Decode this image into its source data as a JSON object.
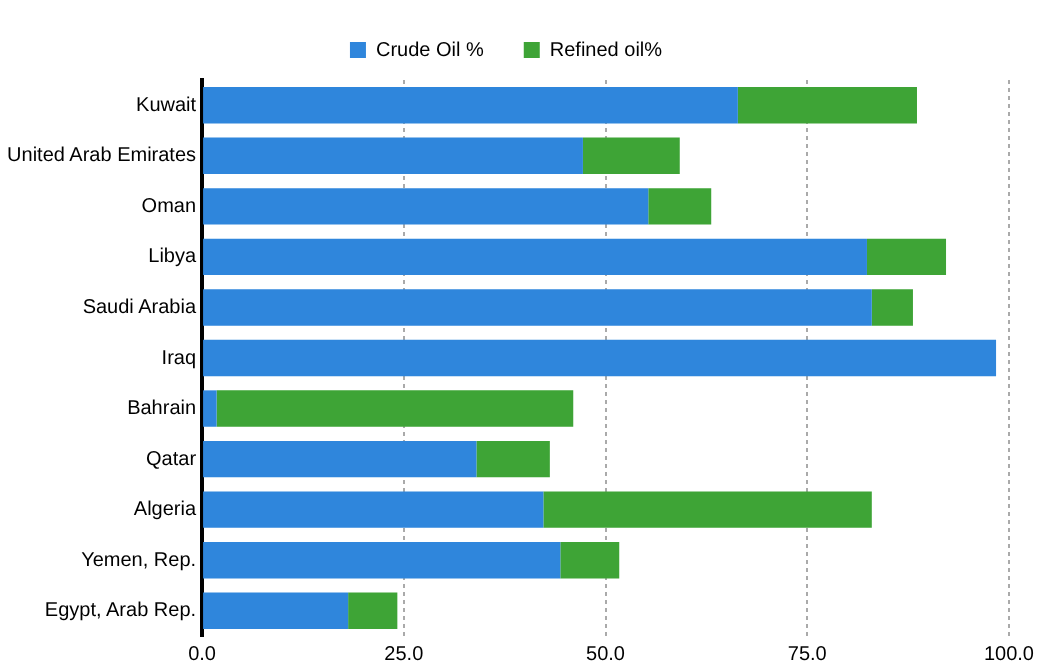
{
  "chart_data": {
    "type": "bar",
    "orientation": "horizontal",
    "stacked": true,
    "categories": [
      "Kuwait",
      "United Arab Emirates",
      "Oman",
      "Libya",
      "Saudi Arabia",
      "Iraq",
      "Bahrain",
      "Qatar",
      "Algeria",
      "Yemen, Rep.",
      "Egypt, Arab Rep."
    ],
    "series": [
      {
        "name": "Crude Oil %",
        "color": "#2f86dc",
        "values": [
          66.4,
          47.2,
          55.3,
          82.4,
          83.0,
          98.4,
          1.8,
          34.0,
          42.3,
          44.4,
          18.1
        ]
      },
      {
        "name": "Refined oil%",
        "color": "#3ea436",
        "values": [
          22.2,
          12.0,
          7.8,
          9.8,
          5.1,
          0,
          44.2,
          9.1,
          40.7,
          7.3,
          6.1
        ]
      }
    ],
    "xlim": [
      0,
      100
    ],
    "xticks": [
      {
        "value": 0,
        "label": "0.0"
      },
      {
        "value": 25,
        "label": "25.0"
      },
      {
        "value": 50,
        "label": "50.0"
      },
      {
        "value": 75,
        "label": "75.0"
      },
      {
        "value": 100,
        "label": "100.0"
      }
    ],
    "grid": "x",
    "legend": "top"
  }
}
